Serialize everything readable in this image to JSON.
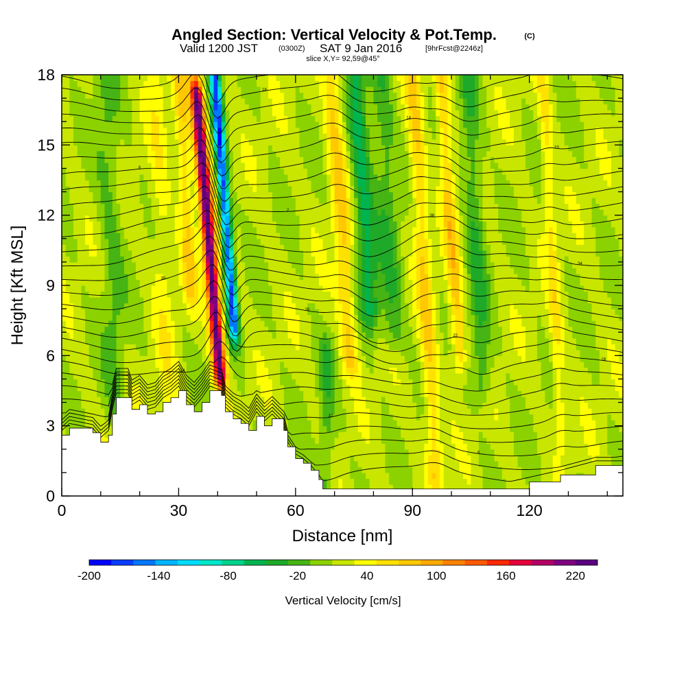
{
  "title": "Angled Section: Vertical Velocity & Pot.Temp.",
  "title_units": "(C)",
  "subtitle": {
    "valid": "Valid 1200 JST",
    "utc": "(0300Z)",
    "date": "SAT 9 Jan 2016",
    "fcst": "[9hrFcst@2246z]"
  },
  "slice_label": "slice X,Y= 92,59@45°",
  "chart_data": {
    "type": "heatmap",
    "title": "Angled Section: Vertical Velocity & Pot.Temp.",
    "xlabel": "Distance [nm]",
    "ylabel": "Height [Kft MSL]",
    "xlim": [
      0,
      144
    ],
    "ylim": [
      0,
      18
    ],
    "x_ticks": [
      0,
      30,
      60,
      90,
      120
    ],
    "x_tick_labels": [
      "0",
      "30",
      "60",
      "90",
      "120"
    ],
    "y_ticks": [
      0,
      3,
      6,
      9,
      12,
      15,
      18
    ],
    "y_tick_labels": [
      "0",
      "3",
      "6",
      "9",
      "12",
      "15",
      "18"
    ],
    "colorbar": {
      "label": "Vertical Velocity [cm/s]",
      "levels": [
        -200,
        -180,
        -160,
        -140,
        -120,
        -100,
        -80,
        -60,
        -40,
        -20,
        0,
        20,
        40,
        60,
        80,
        100,
        120,
        140,
        160,
        180,
        200,
        220
      ],
      "tick_values": [
        -200,
        -140,
        -80,
        -20,
        40,
        100,
        160,
        220
      ],
      "tick_labels": [
        "-200",
        "-140",
        "-80",
        "-20",
        "40",
        "100",
        "160",
        "220"
      ],
      "colors": [
        "#0000ff",
        "#0a3cff",
        "#0078ff",
        "#00b4ff",
        "#00dcff",
        "#00e6c8",
        "#00d28c",
        "#00b450",
        "#1eaa28",
        "#46b414",
        "#8cd200",
        "#c8e600",
        "#ffff00",
        "#ffe100",
        "#ffc800",
        "#ffaa00",
        "#ff8200",
        "#ff5a00",
        "#ff2800",
        "#e6003c",
        "#b40064",
        "#7f007f",
        "#5a007f"
      ]
    },
    "velocity_features": [
      {
        "x": 40.5,
        "z0": 5.5,
        "z1": 17.0,
        "amp": 230,
        "sx": 1.6,
        "tilt": -0.5
      },
      {
        "x": 44.0,
        "z0": 7.5,
        "z1": 18.0,
        "amp": -190,
        "sx": 1.3,
        "tilt": -0.45
      },
      {
        "x": 27.0,
        "z0": 4.0,
        "z1": 18.0,
        "amp": 25,
        "sx": 2.5,
        "tilt": -0.2
      },
      {
        "x": 33.0,
        "z0": 9.0,
        "z1": 18.0,
        "amp": 55,
        "sx": 2.0,
        "tilt": -0.3
      },
      {
        "x": 74.0,
        "z0": 6.0,
        "z1": 18.0,
        "amp": 60,
        "sx": 2.2,
        "tilt": -0.4
      },
      {
        "x": 79.0,
        "z0": 8.0,
        "z1": 18.0,
        "amp": -70,
        "sx": 2.5,
        "tilt": -0.35
      },
      {
        "x": 85.0,
        "z0": 7.0,
        "z1": 18.0,
        "amp": -40,
        "sx": 3.0,
        "tilt": -0.3
      },
      {
        "x": 96.0,
        "z0": 1.0,
        "z1": 18.0,
        "amp": 55,
        "sx": 2.0,
        "tilt": -0.35
      },
      {
        "x": 102.0,
        "z0": 6.0,
        "z1": 18.0,
        "amp": 60,
        "sx": 1.8,
        "tilt": -0.4
      },
      {
        "x": 108.0,
        "z0": 5.0,
        "z1": 18.0,
        "amp": -45,
        "sx": 2.5,
        "tilt": -0.3
      },
      {
        "x": 128.0,
        "z0": 3.0,
        "z1": 18.0,
        "amp": 40,
        "sx": 1.5,
        "tilt": -0.3
      },
      {
        "x": 68.0,
        "z0": 0.5,
        "z1": 6.0,
        "amp": -35,
        "sx": 2.0,
        "tilt": 0.0
      },
      {
        "x": 14.0,
        "z0": 4.0,
        "z1": 18.0,
        "amp": -30,
        "sx": 3.0,
        "tilt": -0.2
      }
    ],
    "terrain_kft": [
      {
        "x": 0,
        "z": 2.6
      },
      {
        "x": 2,
        "z": 2.9
      },
      {
        "x": 8,
        "z": 2.7
      },
      {
        "x": 10,
        "z": 2.3
      },
      {
        "x": 12,
        "z": 2.6
      },
      {
        "x": 13,
        "z": 3.5
      },
      {
        "x": 14,
        "z": 4.2
      },
      {
        "x": 17,
        "z": 4.2
      },
      {
        "x": 18,
        "z": 3.7
      },
      {
        "x": 20,
        "z": 3.9
      },
      {
        "x": 22,
        "z": 3.5
      },
      {
        "x": 24,
        "z": 3.6
      },
      {
        "x": 26,
        "z": 4.0
      },
      {
        "x": 28,
        "z": 4.2
      },
      {
        "x": 30,
        "z": 4.5
      },
      {
        "x": 32,
        "z": 3.9
      },
      {
        "x": 34,
        "z": 3.6
      },
      {
        "x": 36,
        "z": 4.0
      },
      {
        "x": 38,
        "z": 4.5
      },
      {
        "x": 41,
        "z": 4.3
      },
      {
        "x": 42,
        "z": 3.6
      },
      {
        "x": 44,
        "z": 3.3
      },
      {
        "x": 46,
        "z": 3.1
      },
      {
        "x": 48,
        "z": 2.8
      },
      {
        "x": 50,
        "z": 3.4
      },
      {
        "x": 52,
        "z": 3.0
      },
      {
        "x": 54,
        "z": 3.3
      },
      {
        "x": 57,
        "z": 2.8
      },
      {
        "x": 58,
        "z": 2.1
      },
      {
        "x": 60,
        "z": 1.6
      },
      {
        "x": 62,
        "z": 1.4
      },
      {
        "x": 64,
        "z": 1.1
      },
      {
        "x": 66,
        "z": 0.7
      },
      {
        "x": 67,
        "z": 0.3
      },
      {
        "x": 112,
        "z": 0.3
      },
      {
        "x": 120,
        "z": 0.6
      },
      {
        "x": 128,
        "z": 0.9
      },
      {
        "x": 137,
        "z": 1.3
      },
      {
        "x": 144,
        "z": 1.3
      }
    ],
    "theta_contours": {
      "bottom_value": 2,
      "interval": 2,
      "count": 30,
      "label_values": [
        "2",
        "4",
        "6",
        "8",
        "10",
        "12",
        "14",
        "16",
        "18",
        "20",
        "22",
        "24",
        "26",
        "28",
        "30",
        "32",
        "34",
        "36",
        "38",
        "40"
      ]
    }
  },
  "colors": {
    "background": "#ffffff",
    "terrain": "#ffffff",
    "contour": "#000000",
    "frame": "#000000"
  }
}
